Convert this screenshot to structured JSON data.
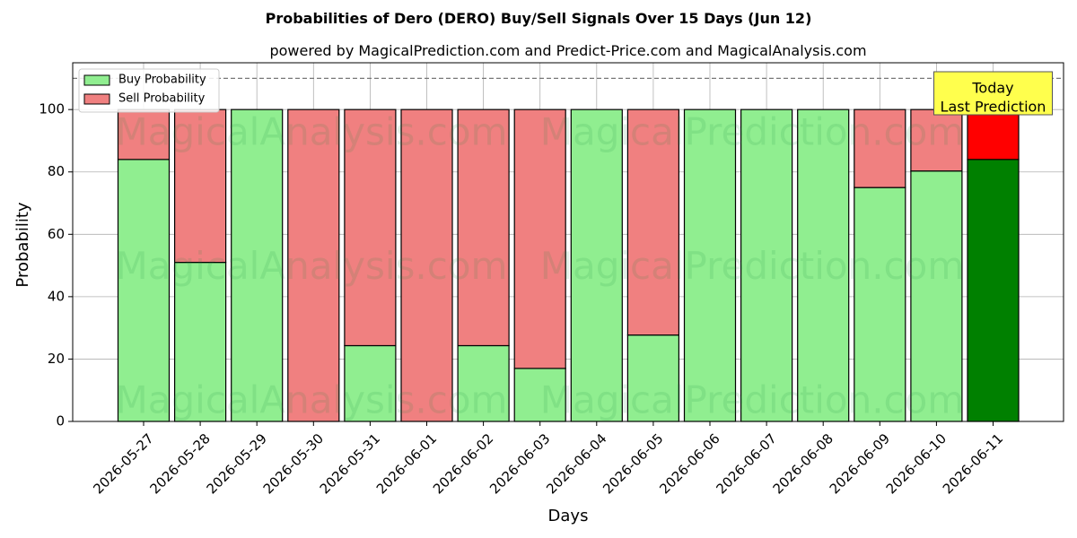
{
  "chart_data": {
    "type": "bar",
    "stacked": true,
    "title": "Probabilities of Dero (DERO) Buy/Sell Signals Over 15 Days (Jun 12)",
    "subtitle": "powered by MagicalPrediction.com and Predict-Price.com and MagicalAnalysis.com",
    "xlabel": "Days",
    "ylabel": "Probability",
    "ylim": [
      0,
      115
    ],
    "yticks": [
      0,
      20,
      40,
      60,
      80,
      100
    ],
    "reference_line": 110,
    "grid": true,
    "legend_position": "top-left",
    "categories": [
      "2026-05-27",
      "2026-05-28",
      "2026-05-29",
      "2026-05-30",
      "2026-05-31",
      "2026-06-01",
      "2026-06-02",
      "2026-06-03",
      "2026-06-04",
      "2026-06-05",
      "2026-06-06",
      "2026-06-07",
      "2026-06-08",
      "2026-06-09",
      "2026-06-10",
      "2026-06-11"
    ],
    "series": [
      {
        "name": "Buy Probability",
        "color": "#90ee90",
        "highlight_color": "#008000",
        "values": [
          84,
          51,
          100,
          0,
          24.3,
          0,
          24.3,
          17,
          100,
          27.7,
          100,
          100,
          100,
          75,
          80.3,
          84
        ]
      },
      {
        "name": "Sell Probability",
        "color": "#f08080",
        "highlight_color": "#ff0000",
        "values": [
          16,
          49,
          0,
          100,
          75.7,
          100,
          75.7,
          83,
          0,
          72.3,
          0,
          0,
          0,
          25,
          19.7,
          16
        ]
      }
    ],
    "highlight_index": 15,
    "annotation": {
      "line1": "Today",
      "line2": "Last Prediction",
      "background": "#ffff4d"
    },
    "watermarks": [
      "MagicalAnalysis.com",
      "MagicalPrediction.com"
    ]
  }
}
